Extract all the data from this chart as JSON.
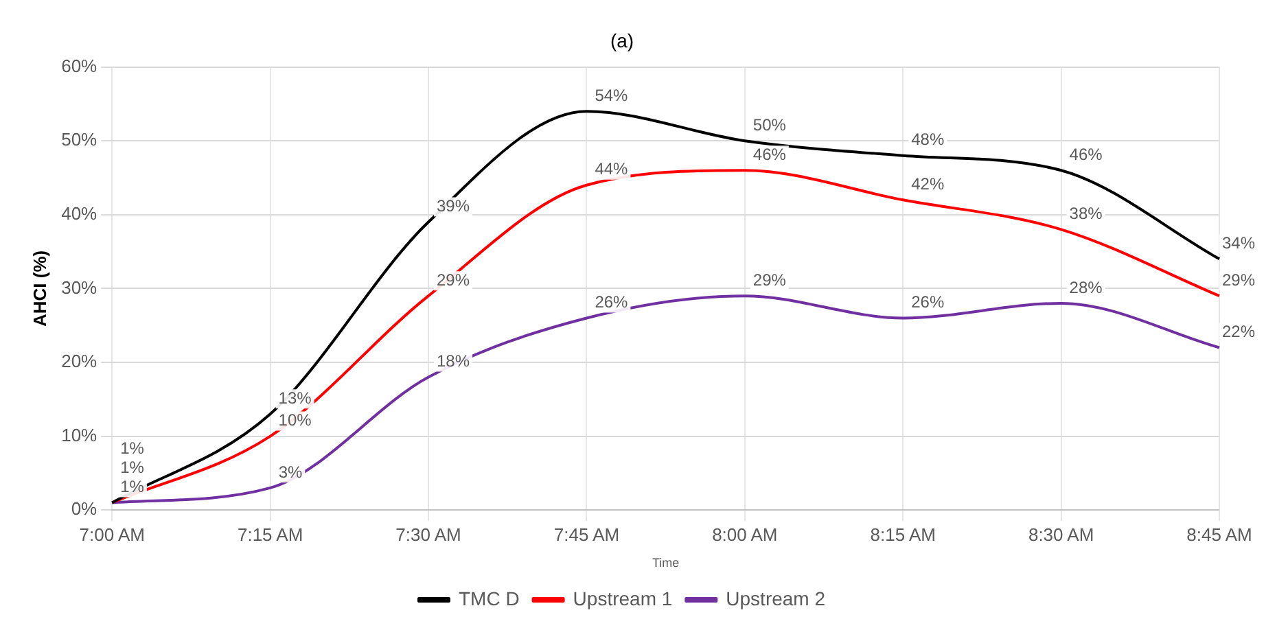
{
  "chart_data": {
    "type": "line",
    "title": "(a)",
    "xlabel": "Time",
    "ylabel": "AHCI (%)",
    "categories": [
      "7:00 AM",
      "7:15 AM",
      "7:30 AM",
      "7:45 AM",
      "8:00 AM",
      "8:15 AM",
      "8:30 AM",
      "8:45 AM"
    ],
    "series": [
      {
        "name": "TMC D",
        "color": "#000000",
        "values": [
          1,
          13,
          39,
          54,
          50,
          48,
          46,
          34
        ],
        "value_labels": [
          "1%",
          "13%",
          "39%",
          "54%",
          "50%",
          "48%",
          "46%",
          "34%"
        ]
      },
      {
        "name": "Upstream 1",
        "color": "#ff0000",
        "values": [
          1,
          10,
          29,
          44,
          46,
          42,
          38,
          29
        ],
        "value_labels": [
          "1%",
          "10%",
          "29%",
          "44%",
          "46%",
          "42%",
          "38%",
          "29%"
        ]
      },
      {
        "name": "Upstream 2",
        "color": "#7030a0",
        "values": [
          1,
          3,
          18,
          26,
          29,
          26,
          28,
          22
        ],
        "value_labels": [
          "1%",
          "3%",
          "18%",
          "26%",
          "29%",
          "26%",
          "28%",
          "22%"
        ]
      }
    ],
    "ylim": [
      0,
      60
    ],
    "yticks": [
      {
        "value": 0,
        "label": "0%"
      },
      {
        "value": 10,
        "label": "10%"
      },
      {
        "value": 20,
        "label": "20%"
      },
      {
        "value": 30,
        "label": "30%"
      },
      {
        "value": 40,
        "label": "40%"
      },
      {
        "value": 50,
        "label": "50%"
      },
      {
        "value": 60,
        "label": "60%"
      }
    ],
    "grid": true,
    "legend": "bottom",
    "marker": "none",
    "line_style": "solid"
  }
}
